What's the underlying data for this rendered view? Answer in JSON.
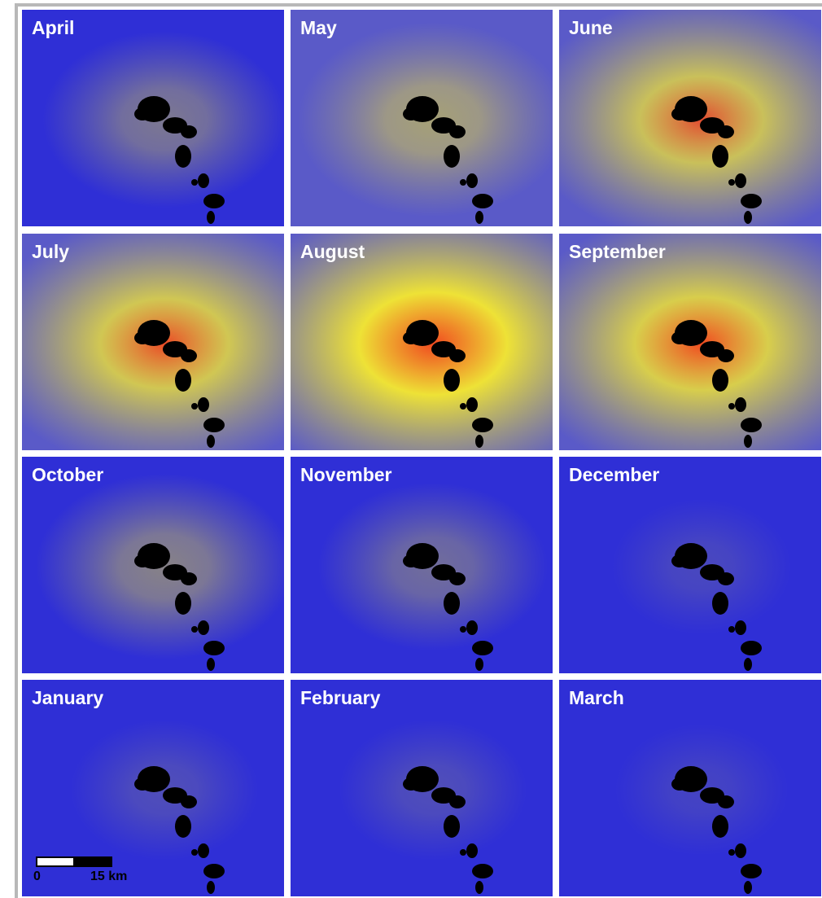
{
  "panels": [
    {
      "label": "April"
    },
    {
      "label": "May"
    },
    {
      "label": "June"
    },
    {
      "label": "July"
    },
    {
      "label": "August"
    },
    {
      "label": "September"
    },
    {
      "label": "October"
    },
    {
      "label": "November"
    },
    {
      "label": "December"
    },
    {
      "label": "January"
    },
    {
      "label": "February"
    },
    {
      "label": "March"
    }
  ],
  "scale_bar": {
    "start": "0",
    "end": "15 km"
  }
}
